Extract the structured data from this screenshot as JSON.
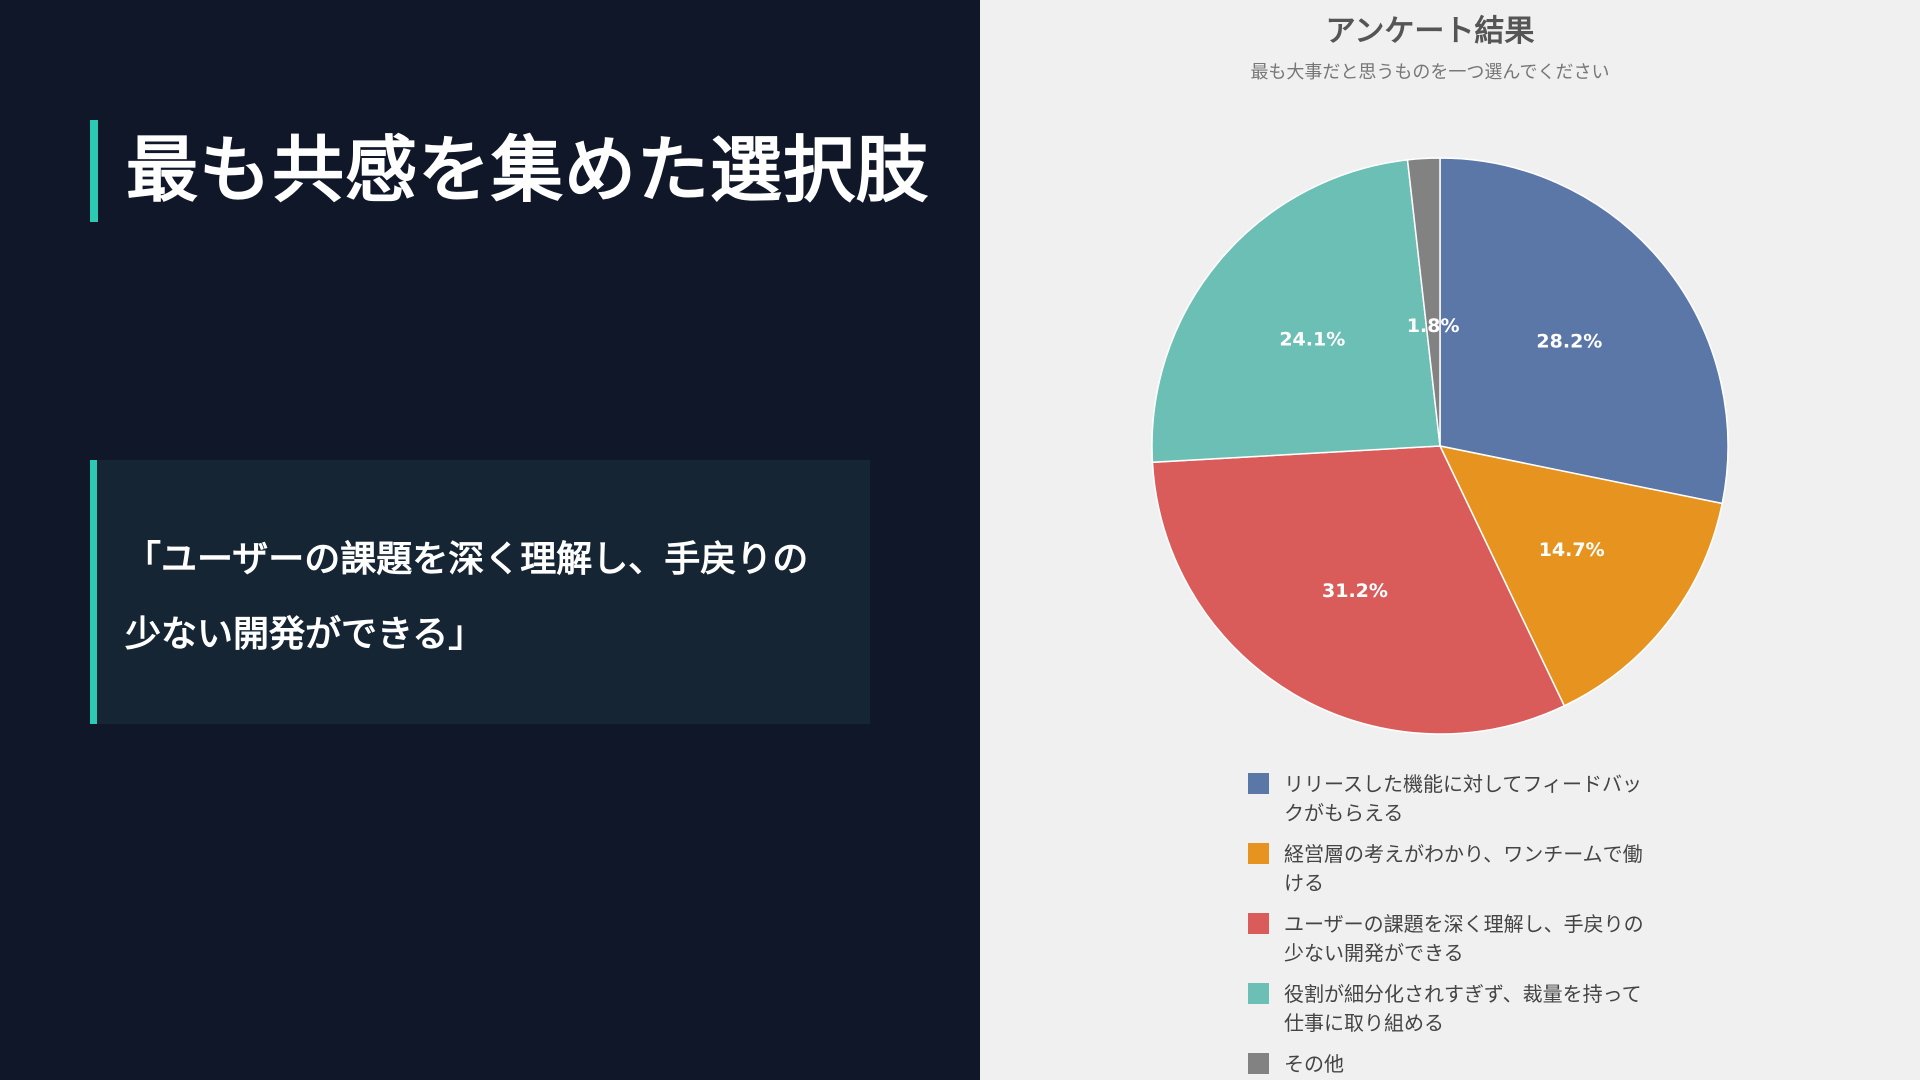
{
  "slide": {
    "title": "最も共感を集めた選択肢",
    "quote": "「ユーザーの課題を深く理解し、手戻りの少ない開発ができる」",
    "accent_color": "#2cc9b5",
    "background_color": "#0f1729"
  },
  "chart_data": {
    "type": "pie",
    "title": "アンケート結果",
    "subtitle": "最も大事だと思うものを一つ選んでください",
    "legend_position": "bottom",
    "slices": [
      {
        "label": "リリースした機能に対してフィードバックがもらえる",
        "value": 28.2,
        "value_label": "28.2%",
        "color": "#5b77a8"
      },
      {
        "label": "経営層の考えがわかり、ワンチームで働ける",
        "value": 14.7,
        "value_label": "14.7%",
        "color": "#e6941f"
      },
      {
        "label": "ユーザーの課題を深く理解し、手戻りの少ない開発ができる",
        "value": 31.2,
        "value_label": "31.2%",
        "color": "#d95c5b"
      },
      {
        "label": "役割が細分化されすぎず、裁量を持って仕事に取り組める",
        "value": 24.1,
        "value_label": "24.1%",
        "color": "#6bbfb4"
      },
      {
        "label": "その他",
        "value": 1.8,
        "value_label": "1.8%",
        "color": "#828282"
      }
    ]
  }
}
